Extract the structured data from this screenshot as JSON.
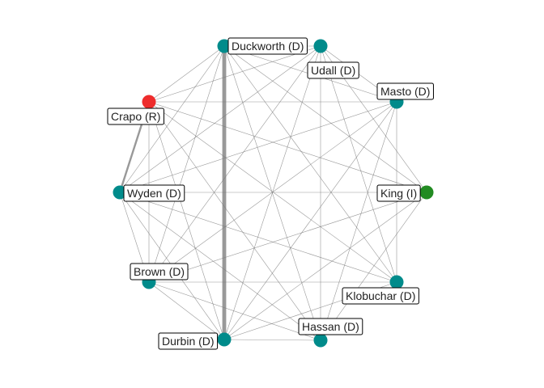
{
  "network": {
    "nodes": [
      {
        "id": "duckworth",
        "label": "Duckworth (D)",
        "party": "D"
      },
      {
        "id": "udall",
        "label": "Udall (D)",
        "party": "D"
      },
      {
        "id": "masto",
        "label": "Masto (D)",
        "party": "D"
      },
      {
        "id": "king",
        "label": "King (I)",
        "party": "I"
      },
      {
        "id": "klobuchar",
        "label": "Klobuchar (D)",
        "party": "D"
      },
      {
        "id": "hassan",
        "label": "Hassan (D)",
        "party": "D"
      },
      {
        "id": "durbin",
        "label": "Durbin (D)",
        "party": "D"
      },
      {
        "id": "brown",
        "label": "Brown (D)",
        "party": "D"
      },
      {
        "id": "wyden",
        "label": "Wyden (D)",
        "party": "D"
      },
      {
        "id": "crapo",
        "label": "Crapo (R)",
        "party": "R"
      }
    ],
    "party_colors": {
      "D": "#008b8b",
      "R": "#ee2c2c",
      "I": "#228b22"
    },
    "edges": [
      {
        "a": "duckworth",
        "b": "durbin",
        "weight": 4
      },
      {
        "a": "crapo",
        "b": "wyden",
        "weight": 2
      },
      {
        "a": "duckworth",
        "b": "udall",
        "weight": 1
      },
      {
        "a": "duckworth",
        "b": "masto",
        "weight": 1
      },
      {
        "a": "duckworth",
        "b": "crapo",
        "weight": 1
      },
      {
        "a": "duckworth",
        "b": "wyden",
        "weight": 1
      },
      {
        "a": "duckworth",
        "b": "brown",
        "weight": 1
      },
      {
        "a": "duckworth",
        "b": "hassan",
        "weight": 1
      },
      {
        "a": "duckworth",
        "b": "klobuchar",
        "weight": 1
      },
      {
        "a": "duckworth",
        "b": "king",
        "weight": 1
      },
      {
        "a": "udall",
        "b": "masto",
        "weight": 1
      },
      {
        "a": "udall",
        "b": "crapo",
        "weight": 1
      },
      {
        "a": "udall",
        "b": "wyden",
        "weight": 1
      },
      {
        "a": "udall",
        "b": "brown",
        "weight": 1
      },
      {
        "a": "udall",
        "b": "durbin",
        "weight": 1
      },
      {
        "a": "udall",
        "b": "hassan",
        "weight": 1
      },
      {
        "a": "udall",
        "b": "klobuchar",
        "weight": 1
      },
      {
        "a": "udall",
        "b": "king",
        "weight": 1
      },
      {
        "a": "masto",
        "b": "crapo",
        "weight": 1
      },
      {
        "a": "masto",
        "b": "wyden",
        "weight": 1
      },
      {
        "a": "masto",
        "b": "brown",
        "weight": 1
      },
      {
        "a": "masto",
        "b": "durbin",
        "weight": 1
      },
      {
        "a": "masto",
        "b": "hassan",
        "weight": 1
      },
      {
        "a": "masto",
        "b": "klobuchar",
        "weight": 1
      },
      {
        "a": "king",
        "b": "crapo",
        "weight": 1
      },
      {
        "a": "king",
        "b": "brown",
        "weight": 1
      },
      {
        "a": "king",
        "b": "durbin",
        "weight": 1
      },
      {
        "a": "king",
        "b": "hassan",
        "weight": 1
      },
      {
        "a": "klobuchar",
        "b": "wyden",
        "weight": 1
      },
      {
        "a": "klobuchar",
        "b": "brown",
        "weight": 1
      },
      {
        "a": "klobuchar",
        "b": "durbin",
        "weight": 1
      },
      {
        "a": "klobuchar",
        "b": "crapo",
        "weight": 1
      },
      {
        "a": "hassan",
        "b": "wyden",
        "weight": 1
      },
      {
        "a": "hassan",
        "b": "brown",
        "weight": 1
      },
      {
        "a": "hassan",
        "b": "durbin",
        "weight": 1
      },
      {
        "a": "hassan",
        "b": "crapo",
        "weight": 1
      },
      {
        "a": "durbin",
        "b": "wyden",
        "weight": 1
      },
      {
        "a": "durbin",
        "b": "brown",
        "weight": 1
      },
      {
        "a": "durbin",
        "b": "crapo",
        "weight": 1
      },
      {
        "a": "brown",
        "b": "wyden",
        "weight": 1
      },
      {
        "a": "brown",
        "b": "crapo",
        "weight": 1
      },
      {
        "a": "wyden",
        "b": "king",
        "weight": 1
      }
    ]
  }
}
